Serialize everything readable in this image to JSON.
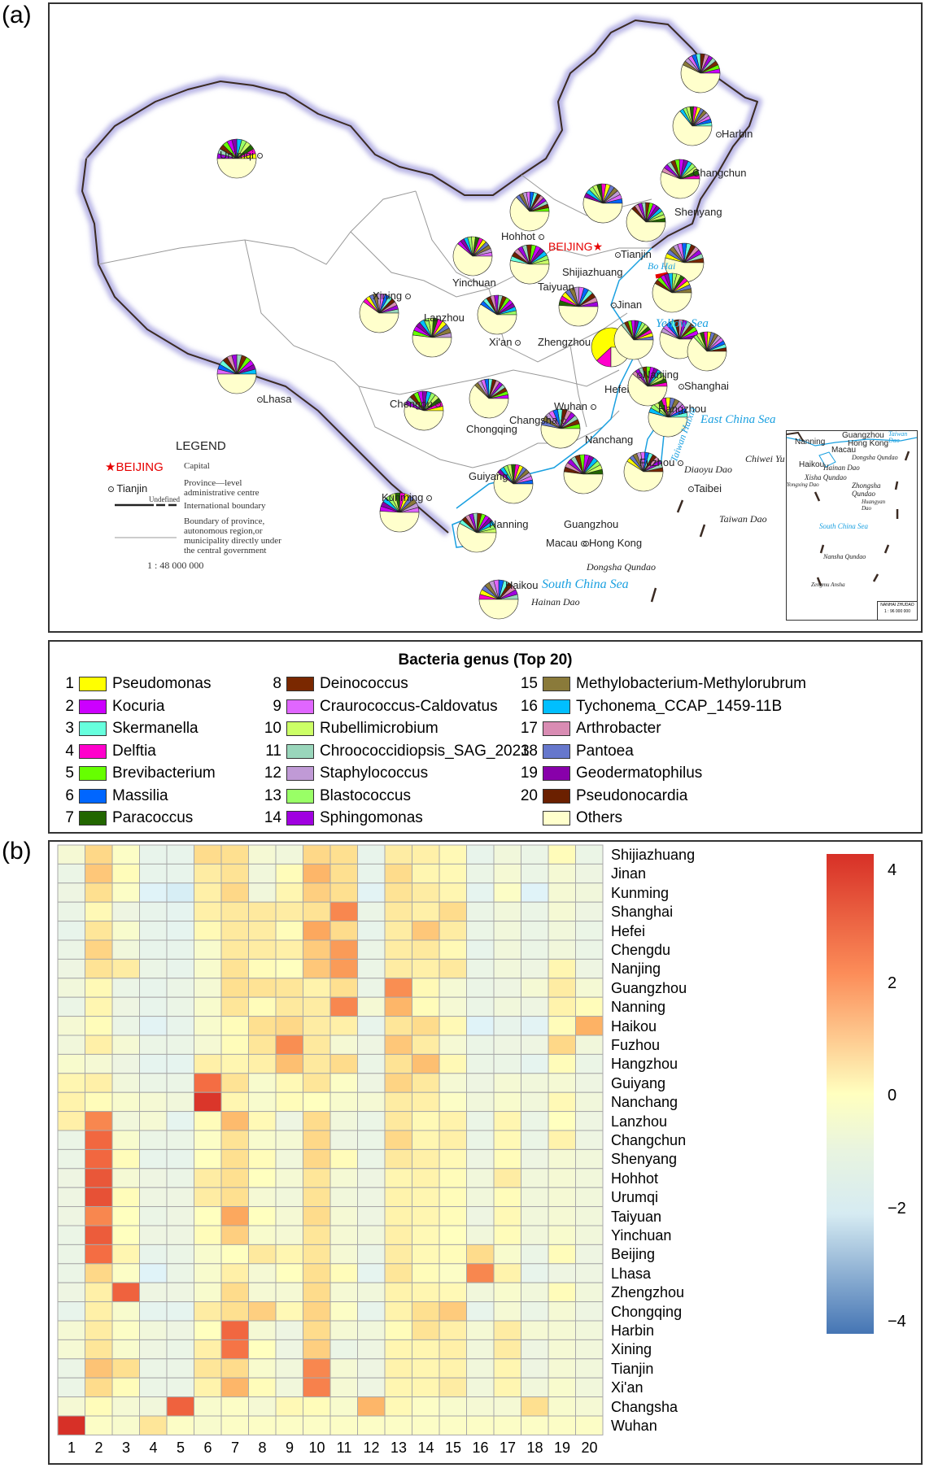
{
  "panel_a_label": "(a)",
  "panel_b_label": "(b)",
  "map": {
    "legend": {
      "title": "LEGEND",
      "capital_symbol": "★BEIJING",
      "capital_desc": "Capital",
      "admin_symbol": "Tianjin",
      "admin_desc_1": "Province—level",
      "admin_desc_2": "administrative centre",
      "undefined_label": "Undefined",
      "intl_desc": "International boundary",
      "prov_desc_1": "Boundary of province,",
      "prov_desc_2": "autonomous region,or",
      "prov_desc_3": "municipality directly under",
      "prov_desc_4": "the central government",
      "scale": "1 : 48 000 000"
    },
    "capital": "BEIJING",
    "cities": [
      "Ürümqi",
      "Harbin",
      "Changchun",
      "Shenyang",
      "Hohhot",
      "Tianjin",
      "Shijiazhuang",
      "Yinchuan",
      "Taiyuan",
      "Xining",
      "Lanzhou",
      "Jinan",
      "Xi'an",
      "Zhengzhou",
      "Lhasa",
      "Nanjing",
      "Shanghai",
      "Hefei",
      "Chengdu",
      "Wuhan",
      "Hangzhou",
      "Chongqing",
      "Changsha",
      "Nanchang",
      "Guiyang",
      "Fuzhou",
      "Kunming",
      "Taibei",
      "Nanning",
      "Guangzhou",
      "Macau",
      "Hong Kong",
      "Haikou"
    ],
    "seas": [
      "Bo Hai",
      "Yellow Sea",
      "East China Sea",
      "South China Sea",
      "Taiwan Haixia"
    ],
    "islands": [
      "Diaoyu Dao",
      "Chiwei Yu",
      "Taiwan Dao",
      "Dongsha Qundao",
      "Hainan Dao"
    ],
    "inset": {
      "cities": [
        "Nanning",
        "Guangzhou",
        "Hong Kong",
        "Macau",
        "Haikou"
      ],
      "labels": [
        "Taiwan Dao",
        "Dongsha Qundao",
        "Hainan Dao",
        "Xisha Qundao",
        "Yongxing Dao",
        "Zhongsha Qundao",
        "Huangyan Dao",
        "South China Sea",
        "Nansha Qundao",
        "Zengmu Ansha"
      ],
      "scale_title": "NANHAI ZHUDAO",
      "scale": "1 : 96 000 000"
    }
  },
  "genus_legend": {
    "title": "Bacteria genus (Top 20)",
    "items": [
      {
        "num": "1",
        "name": "Pseudomonas",
        "color": "#ffff00"
      },
      {
        "num": "2",
        "name": "Kocuria",
        "color": "#cc00ff"
      },
      {
        "num": "3",
        "name": "Skermanella",
        "color": "#66ffdd"
      },
      {
        "num": "4",
        "name": "Delftia",
        "color": "#ff00cc"
      },
      {
        "num": "5",
        "name": "Brevibacterium",
        "color": "#66ff00"
      },
      {
        "num": "6",
        "name": "Massilia",
        "color": "#0066ff"
      },
      {
        "num": "7",
        "name": "Paracoccus",
        "color": "#226600"
      },
      {
        "num": "8",
        "name": "Deinococcus",
        "color": "#7a2800"
      },
      {
        "num": "9",
        "name": "Craurococcus-Caldovatus",
        "color": "#e066ff"
      },
      {
        "num": "10",
        "name": "Rubellimicrobium",
        "color": "#ccff66"
      },
      {
        "num": "11",
        "name": "Chroococcidiopsis_SAG_2023",
        "color": "#99d6bb"
      },
      {
        "num": "12",
        "name": "Staphylococcus",
        "color": "#c09ad6"
      },
      {
        "num": "13",
        "name": "Blastococcus",
        "color": "#99ff66"
      },
      {
        "num": "14",
        "name": "Sphingomonas",
        "color": "#a000e0"
      },
      {
        "num": "15",
        "name": "Methylobacterium-Methylorubrum",
        "color": "#8a7a3a"
      },
      {
        "num": "16",
        "name": "Tychonema_CCAP_1459-11B",
        "color": "#00bfff"
      },
      {
        "num": "17",
        "name": "Arthrobacter",
        "color": "#d98cb3"
      },
      {
        "num": "18",
        "name": "Pantoea",
        "color": "#6677cc"
      },
      {
        "num": "19",
        "name": "Geodermatophilus",
        "color": "#8800aa"
      },
      {
        "num": "20",
        "name": "Pseudonocardia",
        "color": "#6b2000"
      },
      {
        "num": "",
        "name": "Others",
        "color": "#ffffcc"
      }
    ]
  },
  "chart_data": {
    "type": "heatmap",
    "title": "",
    "x": [
      "1",
      "2",
      "3",
      "4",
      "5",
      "6",
      "7",
      "8",
      "9",
      "10",
      "11",
      "12",
      "13",
      "14",
      "15",
      "16",
      "17",
      "18",
      "19",
      "20"
    ],
    "y": [
      "Shijiazhuang",
      "Jinan",
      "Kunming",
      "Shanghai",
      "Hefei",
      "Chengdu",
      "Nanjing",
      "Guangzhou",
      "Nanning",
      "Haikou",
      "Fuzhou",
      "Hangzhou",
      "Guiyang",
      "Nanchang",
      "Lanzhou",
      "Changchun",
      "Shenyang",
      "Hohhot",
      "Urumqi",
      "Taiyuan",
      "Yinchuan",
      "Beijing",
      "Lhasa",
      "Zhengzhou",
      "Chongqing",
      "Harbin",
      "Xining",
      "Tianjin",
      "Xi'an",
      "Changsha",
      "Wuhan"
    ],
    "values": [
      [
        -0.3,
        1.2,
        -0.1,
        -0.7,
        -0.7,
        1.1,
        1.0,
        -0.3,
        -0.4,
        1.2,
        1.0,
        -0.7,
        0.6,
        0.5,
        0.2,
        -0.7,
        -0.4,
        -0.6,
        0.1,
        -0.6
      ],
      [
        -0.6,
        1.6,
        0.1,
        -0.7,
        -0.7,
        0.6,
        0.9,
        -0.4,
        0.1,
        2.0,
        1.0,
        -0.7,
        1.1,
        0.3,
        0.2,
        -0.6,
        -0.3,
        -0.6,
        -0.3,
        -0.5
      ],
      [
        -0.5,
        1.0,
        -0.1,
        -1.0,
        -1.2,
        0.5,
        1.2,
        -0.4,
        0.3,
        1.4,
        1.0,
        -0.9,
        0.9,
        0.6,
        0.3,
        -0.8,
        -0.1,
        -1.0,
        -0.3,
        -0.4
      ],
      [
        -0.6,
        0.2,
        -0.5,
        -0.7,
        -0.8,
        0.5,
        0.7,
        0.7,
        0.6,
        0.9,
        2.8,
        -0.6,
        0.7,
        0.5,
        1.1,
        -0.6,
        -0.4,
        -0.6,
        -0.3,
        -0.5
      ],
      [
        -0.7,
        0.8,
        -0.2,
        -0.7,
        -0.8,
        0.2,
        0.7,
        0.6,
        0.1,
        2.3,
        1.1,
        -0.7,
        0.6,
        1.6,
        0.6,
        -0.6,
        -0.4,
        -0.6,
        -0.4,
        -0.6
      ],
      [
        -0.6,
        1.3,
        -0.4,
        -0.7,
        -0.7,
        -0.2,
        0.7,
        0.6,
        0.5,
        1.5,
        2.5,
        -0.6,
        0.6,
        0.7,
        0.2,
        -0.7,
        -0.4,
        -0.6,
        -0.4,
        -0.6
      ],
      [
        -0.5,
        0.9,
        0.6,
        -0.6,
        -0.7,
        -0.2,
        0.9,
        0.1,
        0.0,
        1.6,
        2.5,
        -0.6,
        0.6,
        0.5,
        0.7,
        -0.6,
        -0.4,
        -0.5,
        0.3,
        -0.5
      ],
      [
        -0.4,
        0.2,
        -0.6,
        -0.7,
        -0.6,
        -0.3,
        1.0,
        0.9,
        0.8,
        0.4,
        1.0,
        -0.6,
        2.7,
        0.2,
        -0.3,
        -0.6,
        -0.5,
        -0.3,
        0.6,
        -0.3
      ],
      [
        -0.6,
        0.3,
        -0.5,
        -0.7,
        -0.6,
        -0.2,
        0.8,
        0.1,
        0.7,
        0.6,
        2.8,
        -0.3,
        2.0,
        0.1,
        -0.3,
        -0.6,
        -0.4,
        -0.5,
        0.4,
        0.1
      ],
      [
        -0.3,
        0.1,
        -0.6,
        -0.9,
        -0.7,
        -0.2,
        0.1,
        1.0,
        1.2,
        0.6,
        0.5,
        -0.7,
        0.8,
        1.1,
        0.2,
        -1.0,
        -0.7,
        -0.9,
        0.1,
        2.1
      ],
      [
        -0.4,
        0.5,
        -0.3,
        -0.6,
        -0.6,
        -0.3,
        0.1,
        0.8,
        2.7,
        0.7,
        -0.3,
        -0.5,
        1.6,
        0.6,
        -0.3,
        -0.6,
        -0.5,
        -0.5,
        1.2,
        -0.4
      ],
      [
        -0.2,
        -0.3,
        -0.5,
        -0.8,
        -0.8,
        0.5,
        0.3,
        0.5,
        1.8,
        0.7,
        1.1,
        -0.6,
        0.9,
        1.8,
        0.2,
        -0.6,
        -0.6,
        -0.8,
        0.1,
        -0.6
      ],
      [
        0.3,
        0.5,
        -0.4,
        -0.6,
        -0.6,
        3.2,
        0.9,
        -0.2,
        0.2,
        0.8,
        -0.1,
        -0.5,
        1.3,
        0.7,
        -0.3,
        -0.5,
        -0.3,
        -0.4,
        -0.3,
        -0.5
      ],
      [
        0.4,
        0.1,
        -0.2,
        -0.3,
        -0.4,
        4.2,
        0.3,
        -0.2,
        0.1,
        0.0,
        -0.2,
        -0.3,
        0.6,
        0.5,
        -0.1,
        -0.4,
        -0.2,
        -0.4,
        0.2,
        -0.4
      ],
      [
        0.5,
        2.8,
        -0.4,
        -0.3,
        -0.8,
        0.1,
        1.9,
        0.2,
        -0.5,
        1.1,
        -0.4,
        -0.6,
        0.7,
        0.2,
        0.4,
        -0.6,
        0.3,
        -0.6,
        0.0,
        -0.5
      ],
      [
        -0.6,
        3.3,
        -0.2,
        -0.6,
        -0.6,
        -0.1,
        0.9,
        -0.2,
        -0.3,
        1.2,
        -0.5,
        -0.6,
        1.2,
        0.3,
        0.5,
        -0.6,
        0.2,
        -0.6,
        0.4,
        -0.5
      ],
      [
        -0.6,
        3.3,
        0.1,
        -0.7,
        -0.7,
        0.0,
        1.0,
        0.1,
        -0.4,
        1.2,
        0.1,
        -0.6,
        0.7,
        0.5,
        0.2,
        -0.5,
        0.1,
        -0.5,
        -0.3,
        -0.4
      ],
      [
        -0.5,
        3.6,
        -0.3,
        -0.5,
        -0.6,
        0.6,
        1.0,
        0.0,
        -0.3,
        0.8,
        -0.3,
        -0.5,
        0.3,
        0.4,
        0.1,
        -0.4,
        0.6,
        -0.4,
        -0.3,
        -0.4
      ],
      [
        -0.5,
        3.7,
        0.1,
        -0.5,
        -0.5,
        0.6,
        1.0,
        -0.3,
        -0.4,
        0.9,
        -0.4,
        -0.5,
        0.4,
        0.3,
        0.1,
        -0.4,
        0.1,
        -0.4,
        -0.3,
        -0.4
      ],
      [
        -0.5,
        2.8,
        0.0,
        -0.6,
        -0.5,
        0.0,
        2.3,
        0.0,
        -0.3,
        1.1,
        -0.3,
        -0.5,
        0.4,
        0.3,
        0.1,
        -0.5,
        0.2,
        -0.4,
        -0.3,
        -0.4
      ],
      [
        -0.6,
        3.5,
        0.0,
        -0.5,
        -0.5,
        0.1,
        1.4,
        -0.2,
        -0.3,
        0.8,
        -0.3,
        -0.4,
        0.5,
        0.2,
        0.0,
        -0.4,
        0.1,
        -0.4,
        -0.2,
        -0.4
      ],
      [
        -0.6,
        3.2,
        0.3,
        -0.7,
        -0.6,
        -0.2,
        0.0,
        0.7,
        0.3,
        0.8,
        -0.3,
        -0.6,
        0.6,
        0.2,
        0.1,
        1.1,
        -0.2,
        -0.6,
        0.1,
        -0.5
      ],
      [
        -0.6,
        1.2,
        -0.1,
        -1.0,
        -0.6,
        -0.2,
        0.5,
        -0.3,
        0.0,
        1.0,
        0.1,
        -0.8,
        0.8,
        0.1,
        -0.1,
        2.8,
        0.4,
        -0.7,
        -0.5,
        -0.5
      ],
      [
        -0.5,
        0.5,
        3.4,
        -0.5,
        -0.5,
        -0.2,
        1.1,
        -0.3,
        -0.3,
        1.1,
        -0.3,
        -0.4,
        0.4,
        0.3,
        0.2,
        -0.4,
        -0.2,
        -0.4,
        0.1,
        -0.4
      ],
      [
        -0.7,
        0.5,
        -0.2,
        -0.8,
        -0.8,
        0.6,
        1.0,
        1.4,
        0.2,
        1.3,
        -0.1,
        -0.7,
        0.4,
        1.0,
        1.5,
        -0.7,
        -0.3,
        -0.6,
        -0.3,
        -0.5
      ],
      [
        -0.3,
        0.6,
        -0.1,
        -0.4,
        -0.5,
        0.0,
        3.3,
        -0.3,
        -0.5,
        1.1,
        -0.3,
        -0.4,
        0.1,
        0.9,
        0.5,
        -0.3,
        0.6,
        -0.3,
        -0.3,
        -0.4
      ],
      [
        -0.3,
        0.8,
        -0.2,
        -0.5,
        -0.6,
        0.5,
        3.1,
        0.0,
        -0.5,
        1.4,
        -0.6,
        -0.5,
        0.3,
        0.3,
        0.5,
        -0.4,
        0.6,
        -0.5,
        -0.3,
        -0.4
      ],
      [
        -0.6,
        1.7,
        1.0,
        -0.6,
        -0.6,
        0.8,
        1.1,
        -0.2,
        -0.4,
        2.8,
        -0.3,
        -0.5,
        0.4,
        0.3,
        0.4,
        -0.4,
        0.3,
        -0.5,
        -0.3,
        -0.4
      ],
      [
        -0.6,
        1.1,
        0.1,
        -0.6,
        -0.6,
        0.4,
        2.0,
        0.1,
        -0.4,
        2.9,
        -0.3,
        -0.5,
        0.3,
        0.3,
        0.6,
        -0.4,
        0.3,
        -0.4,
        -0.2,
        -0.4
      ],
      [
        -0.3,
        0.1,
        -0.3,
        -0.4,
        3.4,
        -0.2,
        -0.1,
        -0.3,
        0.2,
        0.1,
        -0.2,
        2.0,
        0.2,
        -0.1,
        -0.2,
        -0.3,
        -0.3,
        1.0,
        -0.2,
        -0.3
      ],
      [
        4.3,
        -0.1,
        -0.2,
        0.8,
        -0.1,
        -0.2,
        -0.1,
        -0.1,
        -0.1,
        -0.1,
        -0.1,
        -0.1,
        -0.1,
        -0.1,
        -0.1,
        -0.1,
        -0.1,
        -0.1,
        -0.1,
        -0.1
      ]
    ],
    "color_scale": {
      "min": -4.2,
      "max": 4.3,
      "low": "#4575b4",
      "mid": "#ffffbf",
      "high": "#d73027"
    },
    "colorbar_ticks": [
      "4",
      "2",
      "0",
      "−2",
      "−4"
    ],
    "colorbar_tick_values": [
      4,
      2,
      0,
      -2,
      -4
    ]
  }
}
